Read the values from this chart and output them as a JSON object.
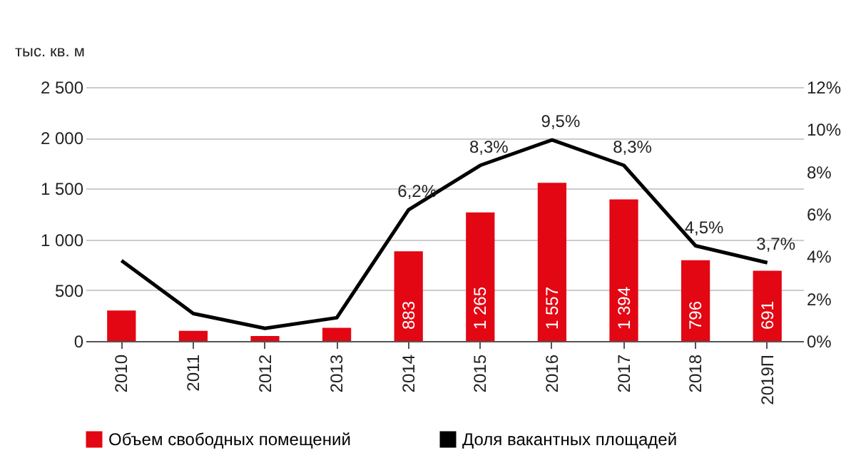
{
  "chart_data": {
    "type": "bar",
    "ylabel": "тыс. кв. м",
    "categories": [
      "2010",
      "2011",
      "2012",
      "2013",
      "2014",
      "2015",
      "2016",
      "2017",
      "2018",
      "2019П"
    ],
    "ylim": [
      0,
      2500
    ],
    "yticks": [
      0,
      {
        "value": 500,
        "label": "500"
      },
      {
        "value": 1000,
        "label": "1 000"
      },
      {
        "value": 1500,
        "label": "1 500"
      },
      {
        "value": 2000,
        "label": "2 000"
      },
      {
        "value": 2500,
        "label": "2 500"
      }
    ],
    "y2lim": [
      0,
      12
    ],
    "y2ticks": [
      {
        "value": 0,
        "label": "0%"
      },
      {
        "value": 2,
        "label": "2%"
      },
      {
        "value": 4,
        "label": "4%"
      },
      {
        "value": 6,
        "label": "6%"
      },
      {
        "value": 8,
        "label": "8%"
      },
      {
        "value": 10,
        "label": "10%"
      },
      {
        "value": 12,
        "label": "12%"
      }
    ],
    "grid": "y",
    "legend": "bottom",
    "series": [
      {
        "name": "Объем свободных помещений",
        "color": "#e30613",
        "values": [
          300,
          100,
          50,
          130,
          883,
          1265,
          1557,
          1394,
          796,
          691
        ],
        "value_labels": [
          null,
          null,
          null,
          null,
          "883",
          "1 265",
          "1 557",
          "1 394",
          "796",
          "691"
        ]
      },
      {
        "name": "Доля вакантных площадей",
        "type": "line",
        "axis": "y2",
        "color": "#000000",
        "values": [
          3.8,
          1.3,
          0.6,
          1.1,
          6.2,
          8.3,
          9.5,
          8.3,
          4.5,
          3.7
        ],
        "value_labels": [
          null,
          null,
          null,
          null,
          "6,2%",
          "8,3%",
          "9,5%",
          "8,3%",
          "4,5%",
          "3,7%"
        ]
      }
    ]
  }
}
